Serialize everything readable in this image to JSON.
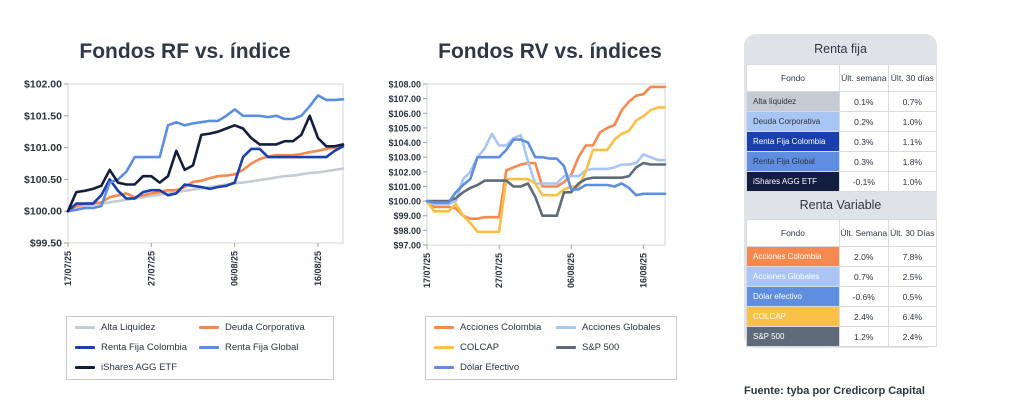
{
  "source_note": "Fuente: tyba por Credicorp Capital",
  "colors": {
    "alta_liquidez": "#c6cbd3",
    "deuda_corporativa": "#f7894f",
    "renta_fija_colombia": "#1a3fae",
    "renta_fija_global": "#5a8de2",
    "ishares": "#131d3f",
    "acciones_colombia": "#f7894f",
    "acciones_globales": "#a9c5f4",
    "colcap": "#f8c145",
    "sp500": "#5f6b78",
    "dolar": "#5f8ee0"
  },
  "tables": {
    "rf": {
      "title": "Renta fija",
      "headers": [
        "Fondo",
        "Últ. semana",
        "Últ. 30 días"
      ],
      "rows": [
        {
          "name": "Alta liquidez",
          "week": "0.1%",
          "month": "0.7%",
          "bg": "#c6cbd3",
          "fg": "#2b3340"
        },
        {
          "name": "Deuda Corporativa",
          "week": "0.2%",
          "month": "1.0%",
          "bg": "#a9c5f4",
          "fg": "#2b3340"
        },
        {
          "name": "Renta Fija Colombia",
          "week": "0.3%",
          "month": "1.1%",
          "bg": "#1a3fae",
          "fg": "#ffffff"
        },
        {
          "name": "Renta Fija Global",
          "week": "0.3%",
          "month": "1.8%",
          "bg": "#5f8ee0",
          "fg": "#2b3340"
        },
        {
          "name": "iShares AGG ETF",
          "week": "-0.1%",
          "month": "1.0%",
          "bg": "#131d3f",
          "fg": "#ffffff"
        }
      ]
    },
    "rv": {
      "title": "Renta Variable",
      "headers": [
        "Fondo",
        "Últ. Semana",
        "Últ. 30 Días"
      ],
      "rows": [
        {
          "name": "Acciones Colombia",
          "week": "2.0%",
          "month": "7.8%",
          "bg": "#f7894f",
          "fg": "#ffffff"
        },
        {
          "name": "Acciones Globales",
          "week": "0.7%",
          "month": "2.5%",
          "bg": "#a9c5f4",
          "fg": "#ffffff"
        },
        {
          "name": "Dólar efectivo",
          "week": "-0.6%",
          "month": "0.5%",
          "bg": "#5f8ee0",
          "fg": "#ffffff"
        },
        {
          "name": "COLCAP",
          "week": "2.4%",
          "month": "6.4%",
          "bg": "#f8c145",
          "fg": "#ffffff"
        },
        {
          "name": "S&P 500",
          "week": "1.2%",
          "month": "2.4%",
          "bg": "#5f6b78",
          "fg": "#ffffff"
        }
      ]
    }
  },
  "chart_data": [
    {
      "type": "line",
      "title": "Fondos RF vs. índice",
      "x_tick_labels": [
        "17/07/25",
        "27/07/25",
        "06/08/25",
        "16/08/25"
      ],
      "x_ticks_days": [
        0,
        10,
        20,
        30
      ],
      "ylim": [
        99.5,
        102.0
      ],
      "y_tick_labels": [
        "$99.50",
        "$100.00",
        "$100.50",
        "$101.00",
        "$101.50",
        "$102.00"
      ],
      "y_ticks": [
        99.5,
        100.0,
        100.5,
        101.0,
        101.5,
        102.0
      ],
      "x": [
        0,
        1,
        2,
        3,
        4,
        5,
        6,
        7,
        8,
        9,
        10,
        11,
        12,
        13,
        14,
        15,
        16,
        17,
        18,
        19,
        20,
        21,
        22,
        23,
        24,
        25,
        26,
        27,
        28,
        29,
        30,
        31,
        32,
        33
      ],
      "series": [
        {
          "name": "Alta Liquidez",
          "color": "#c6cbd3",
          "values": [
            100.0,
            100.06,
            100.08,
            100.1,
            100.12,
            100.14,
            100.16,
            100.18,
            100.2,
            100.22,
            100.24,
            100.26,
            100.28,
            100.3,
            100.32,
            100.34,
            100.36,
            100.38,
            100.4,
            100.42,
            100.44,
            100.45,
            100.47,
            100.49,
            100.51,
            100.53,
            100.55,
            100.56,
            100.58,
            100.6,
            100.61,
            100.63,
            100.65,
            100.67
          ]
        },
        {
          "name": "Deuda Corporativa",
          "color": "#f7894f",
          "values": [
            100.0,
            100.08,
            100.12,
            100.12,
            100.14,
            100.22,
            100.25,
            100.28,
            100.22,
            100.25,
            100.28,
            100.3,
            100.33,
            100.33,
            100.38,
            100.46,
            100.48,
            100.52,
            100.55,
            100.56,
            100.58,
            100.65,
            100.75,
            100.82,
            100.86,
            100.88,
            100.88,
            100.88,
            100.9,
            100.93,
            100.95,
            100.98,
            101.0,
            101.03
          ]
        },
        {
          "name": "Renta Fija Colombia",
          "color": "#1a3fae",
          "values": [
            100.0,
            100.12,
            100.12,
            100.12,
            100.25,
            100.5,
            100.32,
            100.2,
            100.2,
            100.3,
            100.33,
            100.33,
            100.25,
            100.28,
            100.42,
            100.4,
            100.38,
            100.35,
            100.38,
            100.4,
            100.45,
            100.85,
            100.98,
            100.98,
            100.85,
            100.85,
            100.85,
            100.85,
            100.85,
            100.85,
            100.85,
            100.85,
            100.95,
            101.02
          ]
        },
        {
          "name": "Renta Fija Global",
          "color": "#5a8de2",
          "values": [
            100.0,
            100.02,
            100.05,
            100.05,
            100.08,
            100.45,
            100.5,
            100.62,
            100.85,
            100.85,
            100.85,
            100.85,
            101.35,
            101.4,
            101.35,
            101.38,
            101.4,
            101.42,
            101.42,
            101.5,
            101.6,
            101.5,
            101.5,
            101.5,
            101.48,
            101.5,
            101.45,
            101.45,
            101.5,
            101.65,
            101.82,
            101.75,
            101.75,
            101.76
          ]
        },
        {
          "name": "iShares AGG ETF",
          "color": "#131d3f",
          "values": [
            100.0,
            100.3,
            100.32,
            100.35,
            100.4,
            100.65,
            100.45,
            100.42,
            100.42,
            100.55,
            100.55,
            100.45,
            100.55,
            100.95,
            100.65,
            100.72,
            101.2,
            101.22,
            101.25,
            101.3,
            101.35,
            101.3,
            101.15,
            101.05,
            101.05,
            101.05,
            101.1,
            101.1,
            101.2,
            101.5,
            101.15,
            101.02,
            101.02,
            101.05
          ]
        }
      ]
    },
    {
      "type": "line",
      "title": "Fondos RV vs. índices",
      "x_tick_labels": [
        "17/07/25",
        "27/07/25",
        "06/08/25",
        "16/08/25"
      ],
      "x_ticks_days": [
        0,
        10,
        20,
        30
      ],
      "ylim": [
        97.0,
        108.0
      ],
      "y_tick_labels": [
        "$97.00",
        "$98.00",
        "$99.00",
        "$100.00",
        "$101.00",
        "$102.00",
        "$103.00",
        "$104.00",
        "$105.00",
        "$106.00",
        "$107.00",
        "$108.00"
      ],
      "y_ticks": [
        97,
        98,
        99,
        100,
        101,
        102,
        103,
        104,
        105,
        106,
        107,
        108
      ],
      "x": [
        0,
        1,
        2,
        3,
        4,
        5,
        6,
        7,
        8,
        9,
        10,
        11,
        12,
        13,
        14,
        15,
        16,
        17,
        18,
        19,
        20,
        21,
        22,
        23,
        24,
        25,
        26,
        27,
        28,
        29,
        30,
        31,
        32,
        33
      ],
      "series": [
        {
          "name": "Acciones Colombia",
          "color": "#f7894f",
          "values": [
            100.0,
            99.6,
            99.6,
            99.6,
            99.5,
            99.0,
            98.8,
            98.8,
            98.9,
            98.9,
            98.9,
            102.1,
            102.3,
            102.5,
            102.6,
            102.6,
            101.0,
            101.0,
            101.0,
            101.3,
            101.8,
            103.0,
            103.8,
            103.8,
            104.7,
            105.0,
            105.2,
            106.2,
            106.8,
            107.2,
            107.3,
            107.8,
            107.8,
            107.8
          ]
        },
        {
          "name": "Acciones Globales",
          "color": "#a9c5f4",
          "values": [
            100.0,
            99.8,
            99.8,
            99.8,
            100.0,
            101.5,
            102.0,
            103.0,
            103.6,
            104.6,
            103.8,
            103.8,
            104.3,
            104.5,
            102.7,
            101.2,
            101.2,
            101.2,
            101.2,
            101.7,
            101.7,
            101.7,
            102.1,
            102.2,
            102.2,
            102.2,
            102.3,
            102.5,
            102.5,
            102.6,
            103.2,
            103.0,
            102.8,
            102.8
          ]
        },
        {
          "name": "COLCAP",
          "color": "#f8c145",
          "values": [
            100.0,
            99.3,
            99.3,
            99.3,
            99.8,
            99.0,
            98.5,
            97.9,
            97.9,
            97.9,
            97.9,
            101.5,
            101.5,
            101.5,
            101.5,
            101.2,
            100.4,
            100.4,
            100.4,
            100.8,
            101.0,
            101.0,
            102.0,
            103.5,
            103.5,
            103.5,
            104.2,
            104.6,
            104.8,
            105.5,
            105.8,
            106.2,
            106.4,
            106.4
          ]
        },
        {
          "name": "S&P 500",
          "color": "#5f6b78",
          "values": [
            100.0,
            100.0,
            100.0,
            100.0,
            100.2,
            100.6,
            100.9,
            101.1,
            101.4,
            101.4,
            101.4,
            101.4,
            101.0,
            101.0,
            101.2,
            100.3,
            99.0,
            99.0,
            99.0,
            100.6,
            100.6,
            101.2,
            101.5,
            101.6,
            101.6,
            101.6,
            101.6,
            101.6,
            101.7,
            102.3,
            102.6,
            102.5,
            102.5,
            102.5
          ]
        },
        {
          "name": "Dólar Efectivo",
          "color": "#5f8ee0",
          "values": [
            100.0,
            99.9,
            99.9,
            99.9,
            100.6,
            101.1,
            101.5,
            103.0,
            103.0,
            103.0,
            103.0,
            103.5,
            104.2,
            104.2,
            104.0,
            103.0,
            103.0,
            102.9,
            102.9,
            102.4,
            100.8,
            100.8,
            101.1,
            101.1,
            101.1,
            101.1,
            101.0,
            101.2,
            100.9,
            100.4,
            100.5,
            100.5,
            100.5,
            100.5
          ]
        }
      ]
    }
  ]
}
